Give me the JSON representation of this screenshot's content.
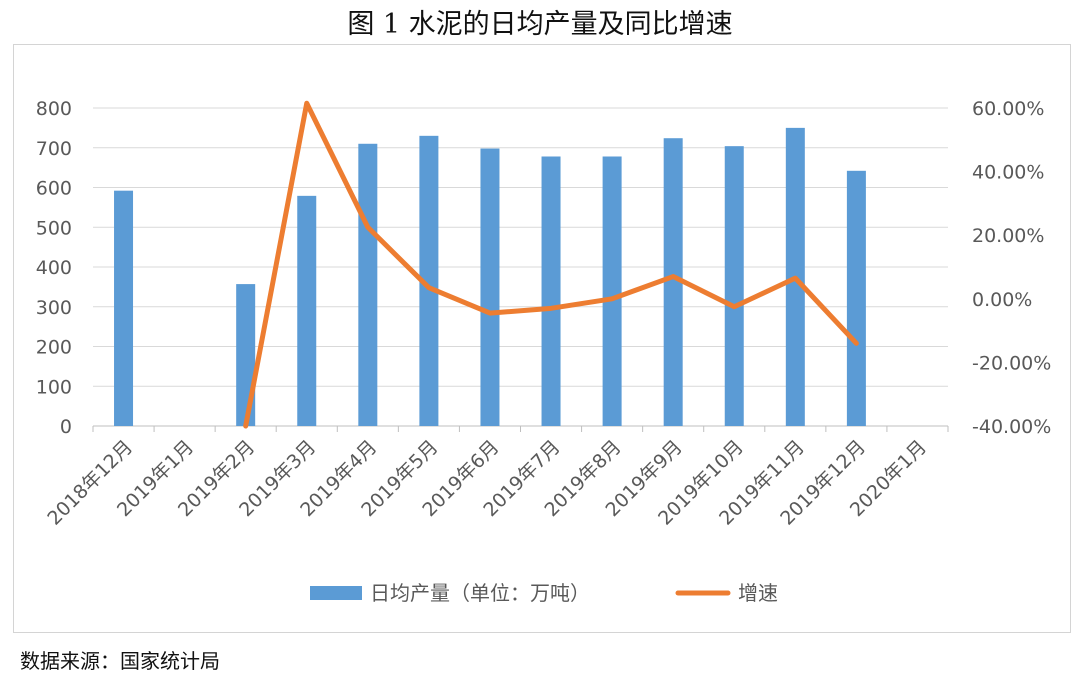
{
  "title": "图 1  水泥的日均产量及同比增速",
  "source": "数据来源：国家统计局",
  "chart_data": {
    "type": "bar+line",
    "categories": [
      "2018年12月",
      "2019年1月",
      "2019年2月",
      "2019年3月",
      "2019年4月",
      "2019年5月",
      "2019年6月",
      "2019年7月",
      "2019年8月",
      "2019年9月",
      "2019年10月",
      "2019年11月",
      "2019年12月",
      "2020年1月"
    ],
    "series": [
      {
        "name": "日均产量（单位：万吨）",
        "type": "bar",
        "axis": "left",
        "values": [
          592,
          null,
          357,
          579,
          710,
          730,
          698,
          678,
          678,
          724,
          704,
          750,
          642,
          null
        ]
      },
      {
        "name": "增速",
        "type": "line",
        "axis": "right",
        "values": [
          null,
          null,
          -40.0,
          61.5,
          22.5,
          3.5,
          -4.5,
          -3.0,
          0.0,
          7.0,
          -2.5,
          6.5,
          -14.0,
          null
        ]
      }
    ],
    "ylim_left": [
      0,
      800
    ],
    "yticks_left": [
      "0",
      "100",
      "200",
      "300",
      "400",
      "500",
      "600",
      "700",
      "800"
    ],
    "ylim_right": [
      -40,
      60
    ],
    "yticks_right": [
      "-40.00%",
      "-20.00%",
      "0.00%",
      "20.00%",
      "40.00%",
      "60.00%"
    ],
    "colors": {
      "bar": "#5b9bd5",
      "line": "#ed7d31",
      "grid": "#d9d9d9",
      "axis": "#bfbfbf",
      "text": "#595959"
    },
    "grid": true,
    "legend_position": "bottom"
  }
}
